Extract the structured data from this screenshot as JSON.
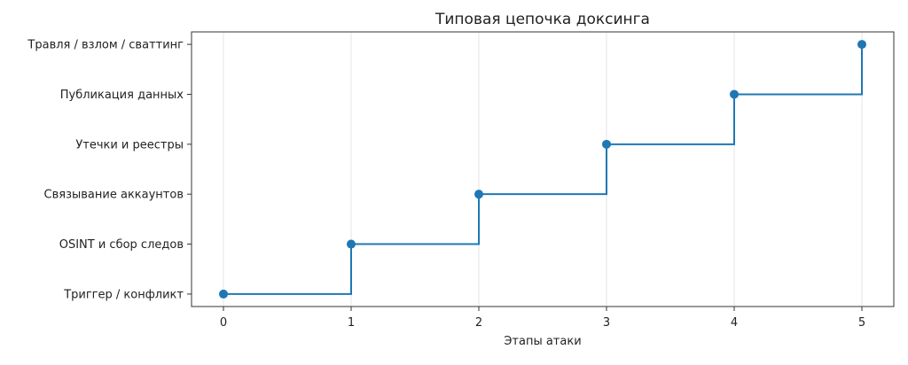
{
  "chart_data": {
    "type": "line",
    "step": "post",
    "title": "Типовая цепочка доксинга",
    "xlabel": "Этапы атаки",
    "ylabel": "",
    "x": [
      0,
      1,
      2,
      3,
      4,
      5
    ],
    "x_ticks": [
      "0",
      "1",
      "2",
      "3",
      "4",
      "5"
    ],
    "categories": [
      "Триггер / конфликт",
      "OSINT и сбор следов",
      "Связывание аккаунтов",
      "Утечки и реестры",
      "Публикация данных",
      "Травля / взлом / сваттинг"
    ],
    "series": [
      {
        "values": [
          0,
          1,
          2,
          3,
          4,
          5
        ]
      }
    ],
    "xlim": [
      -0.25,
      5.25
    ],
    "ylim": [
      -0.25,
      5.25
    ],
    "grid": "vertical",
    "colors": {
      "line": "#1f77b4",
      "grid": "#e6e6e6",
      "axis": "#333333"
    }
  }
}
